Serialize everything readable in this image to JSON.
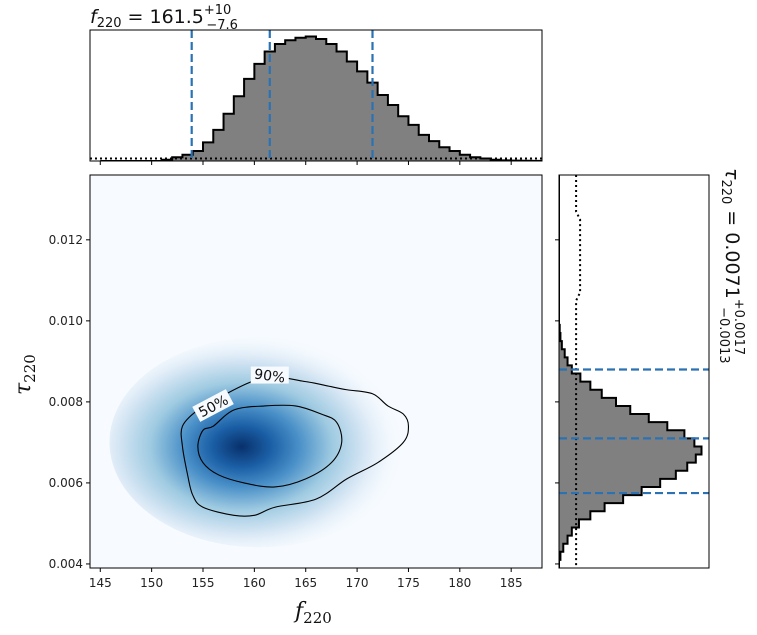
{
  "chart_data": [
    {
      "type": "heatmap",
      "name": "joint-posterior",
      "xlabel_main": "f",
      "xlabel_sub": "220",
      "ylabel_main": "τ",
      "ylabel_sub": "220",
      "xlim": [
        144,
        188
      ],
      "ylim": [
        0.0039,
        0.0136
      ],
      "xticks": [
        145,
        150,
        155,
        160,
        165,
        170,
        175,
        180,
        185
      ],
      "yticks": [
        0.004,
        0.006,
        0.008,
        0.01,
        0.012
      ],
      "ytick_labels": [
        "0.004",
        "0.006",
        "0.008",
        "0.010",
        "0.012"
      ],
      "peak": [
        160.5,
        0.007
      ],
      "colormap": [
        "#f7fbff",
        "#c6dbef",
        "#6baed6",
        "#2171b5",
        "#08306b"
      ],
      "contours": [
        {
          "label": "90%",
          "points": [
            [
              153,
              0.0074
            ],
            [
              154.5,
              0.0078
            ],
            [
              156.5,
              0.0081
            ],
            [
              161,
              0.0086
            ],
            [
              165,
              0.0085
            ],
            [
              167,
              0.0084
            ],
            [
              169,
              0.0083
            ],
            [
              171.5,
              0.0082
            ],
            [
              173,
              0.0079
            ],
            [
              174.5,
              0.0077
            ],
            [
              175,
              0.0074
            ],
            [
              174.5,
              0.007
            ],
            [
              172,
              0.0065
            ],
            [
              169,
              0.0061
            ],
            [
              166,
              0.0056
            ],
            [
              162,
              0.0054
            ],
            [
              160,
              0.0052
            ],
            [
              158,
              0.0052
            ],
            [
              155,
              0.0054
            ],
            [
              154,
              0.0057
            ],
            [
              153.5,
              0.0062
            ],
            [
              153,
              0.0069
            ]
          ]
        },
        {
          "label": "50%",
          "points": [
            [
              155,
              0.0073
            ],
            [
              156,
              0.0074
            ],
            [
              158,
              0.0078
            ],
            [
              161,
              0.0079
            ],
            [
              164,
              0.0079
            ],
            [
              166.5,
              0.0077
            ],
            [
              168,
              0.0075
            ],
            [
              168.5,
              0.007
            ],
            [
              167.5,
              0.0065
            ],
            [
              165,
              0.0061
            ],
            [
              162,
              0.0059
            ],
            [
              159,
              0.006
            ],
            [
              156.5,
              0.0062
            ],
            [
              155,
              0.0065
            ],
            [
              154.5,
              0.0069
            ]
          ]
        }
      ]
    },
    {
      "type": "bar",
      "name": "f220-marginal",
      "title_main": "f",
      "title_sub": "220",
      "title_value": "= 161.5",
      "title_plus": "+10",
      "title_minus": "−7.6",
      "bin_start": 145,
      "bin_width": 1,
      "values": [
        0,
        0,
        0,
        0,
        0,
        0,
        0.01,
        0.03,
        0.05,
        0.08,
        0.15,
        0.25,
        0.38,
        0.52,
        0.66,
        0.78,
        0.88,
        0.94,
        0.97,
        0.99,
        1.0,
        0.98,
        0.94,
        0.88,
        0.8,
        0.72,
        0.63,
        0.53,
        0.45,
        0.36,
        0.29,
        0.21,
        0.16,
        0.11,
        0.08,
        0.05,
        0.03,
        0.02,
        0.01,
        0.005,
        0.003,
        0.002,
        0.001
      ],
      "quantiles": [
        153.9,
        161.5,
        171.5
      ],
      "prior_level": 0.02
    },
    {
      "type": "bar",
      "name": "tau220-marginal",
      "title_main": "τ",
      "title_sub": "220",
      "title_value": "= 0.0071",
      "title_plus": "+0.0017",
      "title_minus": "−0.0013",
      "bin_start": 0.0039,
      "bin_width": 0.0002,
      "values": [
        0,
        0.01,
        0.03,
        0.06,
        0.09,
        0.14,
        0.22,
        0.32,
        0.45,
        0.58,
        0.71,
        0.82,
        0.9,
        0.96,
        1.0,
        0.95,
        0.88,
        0.76,
        0.63,
        0.5,
        0.4,
        0.3,
        0.22,
        0.15,
        0.09,
        0.06,
        0.04,
        0.02,
        0.01,
        0.005,
        0,
        0,
        0,
        0,
        0,
        0,
        0,
        0,
        0,
        0,
        0,
        0,
        0,
        0,
        0,
        0,
        0,
        0,
        0
      ],
      "quantiles": [
        0.00575,
        0.0071,
        0.0088
      ],
      "prior_level": 0.12
    }
  ]
}
